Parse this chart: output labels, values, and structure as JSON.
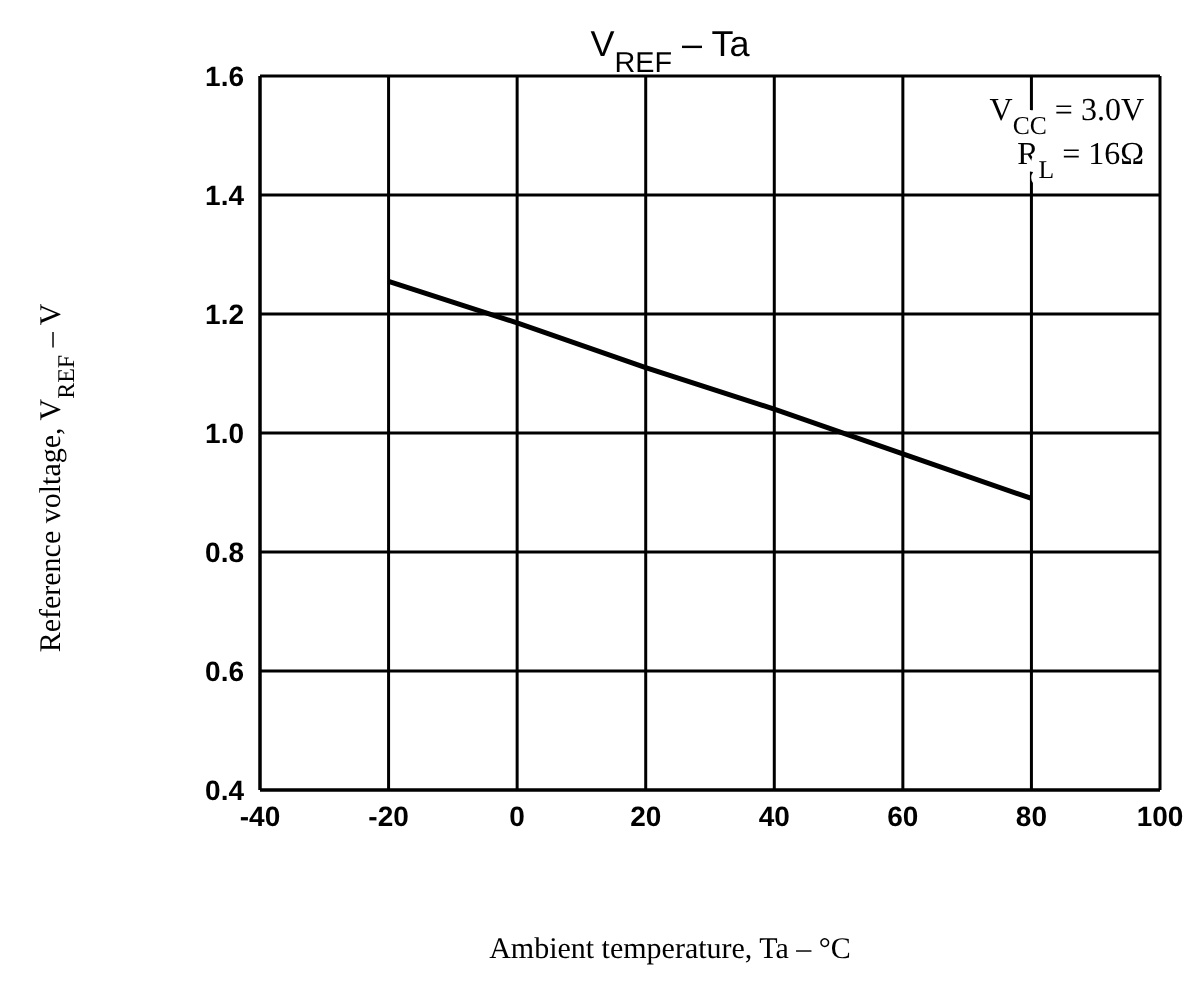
{
  "chart_data": {
    "type": "line",
    "title": "V$_{REF}$ – Ta",
    "xlabel": "Ambient temperature, Ta – °C",
    "ylabel": "Reference voltage, V$_{REF}$ – V",
    "annotations": [
      "V$_{CC}$ = 3.0V",
      "R$_{L}$ = 16Ω"
    ],
    "x": [
      -20,
      0,
      20,
      40,
      60,
      80
    ],
    "series": [
      {
        "color": "#000000",
        "values": [
          1.255,
          1.185,
          1.11,
          1.04,
          0.965,
          0.89
        ]
      }
    ],
    "xlim": [
      -40,
      100
    ],
    "xticks": [
      -40,
      -20,
      0,
      20,
      40,
      60,
      80,
      100
    ],
    "ylim": [
      0.4,
      1.6
    ],
    "yticks": [
      0.4,
      0.6,
      0.8,
      {
        "value": 1,
        "label": "1.0"
      },
      1.2,
      1.4,
      1.6
    ],
    "grid": true,
    "legend": false,
    "marker": "none",
    "line_style": "solid"
  }
}
